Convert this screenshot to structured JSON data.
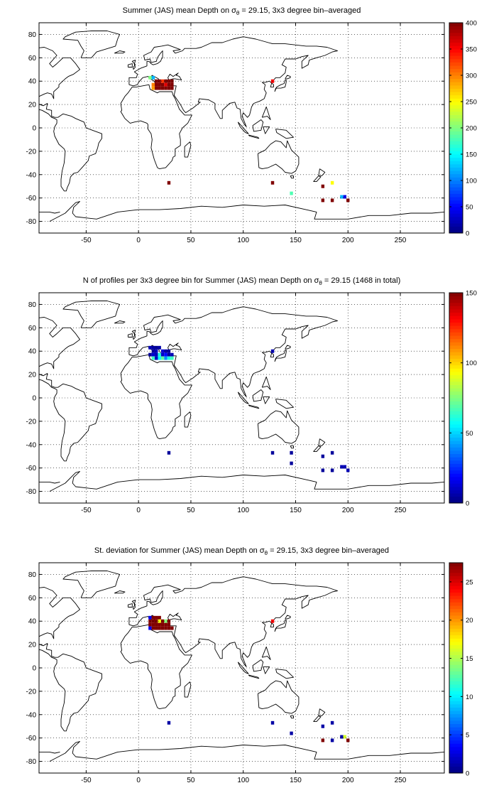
{
  "chart_data": [
    {
      "type": "heatmap",
      "title_main": "Summer (JAS) mean Depth on σ",
      "title_sub": "θ",
      "title_rest": " = 29.15, 3x3 degree bin–averaged",
      "xticks": [
        "-50",
        "0",
        "50",
        "100",
        "150",
        "200",
        "250"
      ],
      "yticks": [
        "80",
        "60",
        "40",
        "20",
        "0",
        "-20",
        "-40",
        "-60",
        "-80"
      ],
      "xlim": [
        -95,
        292
      ],
      "ylim": [
        -90,
        90
      ],
      "grid": true,
      "colormap": "jet",
      "clim": [
        0,
        400
      ],
      "colorbar_ticks": [
        "0",
        "50",
        "100",
        "150",
        "200",
        "250",
        "300",
        "350",
        "400"
      ],
      "cells": [
        {
          "lon": 11,
          "lat": 43,
          "value": 200
        },
        {
          "lon": 14,
          "lat": 43,
          "value": 120
        },
        {
          "lon": 17,
          "lat": 40,
          "value": 400
        },
        {
          "lon": 20,
          "lat": 40,
          "value": 400
        },
        {
          "lon": 23,
          "lat": 40,
          "value": 330
        },
        {
          "lon": 26,
          "lat": 40,
          "value": 400
        },
        {
          "lon": 29,
          "lat": 40,
          "value": 400
        },
        {
          "lon": 32,
          "lat": 40,
          "value": 400
        },
        {
          "lon": 14,
          "lat": 37,
          "value": 300
        },
        {
          "lon": 17,
          "lat": 37,
          "value": 400
        },
        {
          "lon": 20,
          "lat": 37,
          "value": 400
        },
        {
          "lon": 23,
          "lat": 37,
          "value": 400
        },
        {
          "lon": 26,
          "lat": 37,
          "value": 360
        },
        {
          "lon": 29,
          "lat": 37,
          "value": 400
        },
        {
          "lon": 32,
          "lat": 37,
          "value": 400
        },
        {
          "lon": 14,
          "lat": 34,
          "value": 290
        },
        {
          "lon": 17,
          "lat": 34,
          "value": 400
        },
        {
          "lon": 20,
          "lat": 34,
          "value": 400
        },
        {
          "lon": 23,
          "lat": 34,
          "value": 400
        },
        {
          "lon": 26,
          "lat": 34,
          "value": 400
        },
        {
          "lon": 29,
          "lat": 34,
          "value": 400
        },
        {
          "lon": 32,
          "lat": 34,
          "value": 400
        },
        {
          "lon": 128,
          "lat": 40,
          "value": 350
        },
        {
          "lon": 29,
          "lat": -47,
          "value": 400
        },
        {
          "lon": 128,
          "lat": -47,
          "value": 400
        },
        {
          "lon": 146,
          "lat": -56,
          "value": 180
        },
        {
          "lon": 176,
          "lat": -50,
          "value": 400
        },
        {
          "lon": 185,
          "lat": -47,
          "value": 250
        },
        {
          "lon": 176,
          "lat": -62,
          "value": 400
        },
        {
          "lon": 185,
          "lat": -62,
          "value": 400
        },
        {
          "lon": 194,
          "lat": -59,
          "value": 120
        },
        {
          "lon": 197,
          "lat": -59,
          "value": 40
        },
        {
          "lon": 200,
          "lat": -62,
          "value": 400
        }
      ]
    },
    {
      "type": "heatmap",
      "title_main": "N of profiles per 3x3 degree bin for Summer (JAS) mean Depth on σ",
      "title_sub": "θ",
      "title_rest": " = 29.15 (1468 in total)",
      "xticks": [
        "-50",
        "0",
        "50",
        "100",
        "150",
        "200",
        "250"
      ],
      "yticks": [
        "80",
        "60",
        "40",
        "20",
        "0",
        "-20",
        "-40",
        "-60",
        "-80"
      ],
      "xlim": [
        -95,
        292
      ],
      "ylim": [
        -90,
        90
      ],
      "grid": true,
      "colormap": "jet",
      "clim": [
        0,
        150
      ],
      "colorbar_ticks": [
        "0",
        "50",
        "100",
        "150"
      ],
      "cells": [
        {
          "lon": 11,
          "lat": 43,
          "value": 8
        },
        {
          "lon": 14,
          "lat": 43,
          "value": 5
        },
        {
          "lon": 17,
          "lat": 43,
          "value": 3
        },
        {
          "lon": 20,
          "lat": 43,
          "value": 6
        },
        {
          "lon": 14,
          "lat": 40,
          "value": 5
        },
        {
          "lon": 17,
          "lat": 40,
          "value": 10
        },
        {
          "lon": 23,
          "lat": 40,
          "value": 14
        },
        {
          "lon": 26,
          "lat": 40,
          "value": 6
        },
        {
          "lon": 29,
          "lat": 40,
          "value": 5
        },
        {
          "lon": 11,
          "lat": 37,
          "value": 4
        },
        {
          "lon": 14,
          "lat": 37,
          "value": 12
        },
        {
          "lon": 17,
          "lat": 37,
          "value": 8
        },
        {
          "lon": 20,
          "lat": 37,
          "value": 60
        },
        {
          "lon": 23,
          "lat": 37,
          "value": 10
        },
        {
          "lon": 26,
          "lat": 37,
          "value": 20
        },
        {
          "lon": 29,
          "lat": 37,
          "value": 5
        },
        {
          "lon": 32,
          "lat": 37,
          "value": 8
        },
        {
          "lon": 14,
          "lat": 34,
          "value": 65
        },
        {
          "lon": 17,
          "lat": 34,
          "value": 10
        },
        {
          "lon": 20,
          "lat": 34,
          "value": 55
        },
        {
          "lon": 23,
          "lat": 34,
          "value": 70
        },
        {
          "lon": 26,
          "lat": 34,
          "value": 40
        },
        {
          "lon": 29,
          "lat": 34,
          "value": 60
        },
        {
          "lon": 32,
          "lat": 34,
          "value": 65
        },
        {
          "lon": 128,
          "lat": 40,
          "value": 8
        },
        {
          "lon": 29,
          "lat": -47,
          "value": 4
        },
        {
          "lon": 128,
          "lat": -47,
          "value": 4
        },
        {
          "lon": 146,
          "lat": -47,
          "value": 4
        },
        {
          "lon": 146,
          "lat": -56,
          "value": 4
        },
        {
          "lon": 176,
          "lat": -50,
          "value": 4
        },
        {
          "lon": 185,
          "lat": -47,
          "value": 4
        },
        {
          "lon": 176,
          "lat": -62,
          "value": 4
        },
        {
          "lon": 185,
          "lat": -62,
          "value": 4
        },
        {
          "lon": 194,
          "lat": -59,
          "value": 8
        },
        {
          "lon": 197,
          "lat": -59,
          "value": 8
        },
        {
          "lon": 200,
          "lat": -62,
          "value": 8
        }
      ]
    },
    {
      "type": "heatmap",
      "title_main": "St. deviation for Summer (JAS) mean Depth on σ",
      "title_sub": "θ",
      "title_rest": " = 29.15, 3x3 degree bin–averaged",
      "xticks": [
        "-50",
        "0",
        "50",
        "100",
        "150",
        "200",
        "250"
      ],
      "yticks": [
        "80",
        "60",
        "40",
        "20",
        "0",
        "-20",
        "-40",
        "-60",
        "-80"
      ],
      "xlim": [
        -95,
        292
      ],
      "ylim": [
        -90,
        90
      ],
      "grid": true,
      "colormap": "jet",
      "clim": [
        0,
        27.5
      ],
      "colorbar_ticks": [
        "0",
        "5",
        "10",
        "15",
        "20",
        "25"
      ],
      "cells": [
        {
          "lon": 11,
          "lat": 43,
          "value": 3
        },
        {
          "lon": 14,
          "lat": 43,
          "value": 27.5
        },
        {
          "lon": 17,
          "lat": 43,
          "value": 27.5
        },
        {
          "lon": 20,
          "lat": 43,
          "value": 27.5
        },
        {
          "lon": 11,
          "lat": 40,
          "value": 27.5
        },
        {
          "lon": 14,
          "lat": 40,
          "value": 27.5
        },
        {
          "lon": 17,
          "lat": 40,
          "value": 27.5
        },
        {
          "lon": 20,
          "lat": 40,
          "value": 17
        },
        {
          "lon": 23,
          "lat": 40,
          "value": 27.5
        },
        {
          "lon": 26,
          "lat": 40,
          "value": 14
        },
        {
          "lon": 29,
          "lat": 40,
          "value": 27.5
        },
        {
          "lon": 11,
          "lat": 37,
          "value": 27.5
        },
        {
          "lon": 14,
          "lat": 37,
          "value": 27.5
        },
        {
          "lon": 17,
          "lat": 37,
          "value": 27.5
        },
        {
          "lon": 20,
          "lat": 37,
          "value": 27.5
        },
        {
          "lon": 23,
          "lat": 37,
          "value": 27.5
        },
        {
          "lon": 26,
          "lat": 37,
          "value": 27.5
        },
        {
          "lon": 29,
          "lat": 37,
          "value": 27.5
        },
        {
          "lon": 11,
          "lat": 34,
          "value": 3
        },
        {
          "lon": 14,
          "lat": 34,
          "value": 27.5
        },
        {
          "lon": 17,
          "lat": 34,
          "value": 27.5
        },
        {
          "lon": 20,
          "lat": 34,
          "value": 27.5
        },
        {
          "lon": 23,
          "lat": 34,
          "value": 27.5
        },
        {
          "lon": 26,
          "lat": 34,
          "value": 27.5
        },
        {
          "lon": 29,
          "lat": 34,
          "value": 27.5
        },
        {
          "lon": 32,
          "lat": 34,
          "value": 27.5
        },
        {
          "lon": 128,
          "lat": 40,
          "value": 24
        },
        {
          "lon": 29,
          "lat": -47,
          "value": 1
        },
        {
          "lon": 128,
          "lat": -47,
          "value": 1
        },
        {
          "lon": 146,
          "lat": -56,
          "value": 1
        },
        {
          "lon": 176,
          "lat": -50,
          "value": 1
        },
        {
          "lon": 185,
          "lat": -47,
          "value": 1
        },
        {
          "lon": 176,
          "lat": -62,
          "value": 27.5
        },
        {
          "lon": 185,
          "lat": -62,
          "value": 1
        },
        {
          "lon": 194,
          "lat": -59,
          "value": 1
        },
        {
          "lon": 197,
          "lat": -59,
          "value": 16
        },
        {
          "lon": 200,
          "lat": -62,
          "value": 27.5
        }
      ]
    }
  ]
}
